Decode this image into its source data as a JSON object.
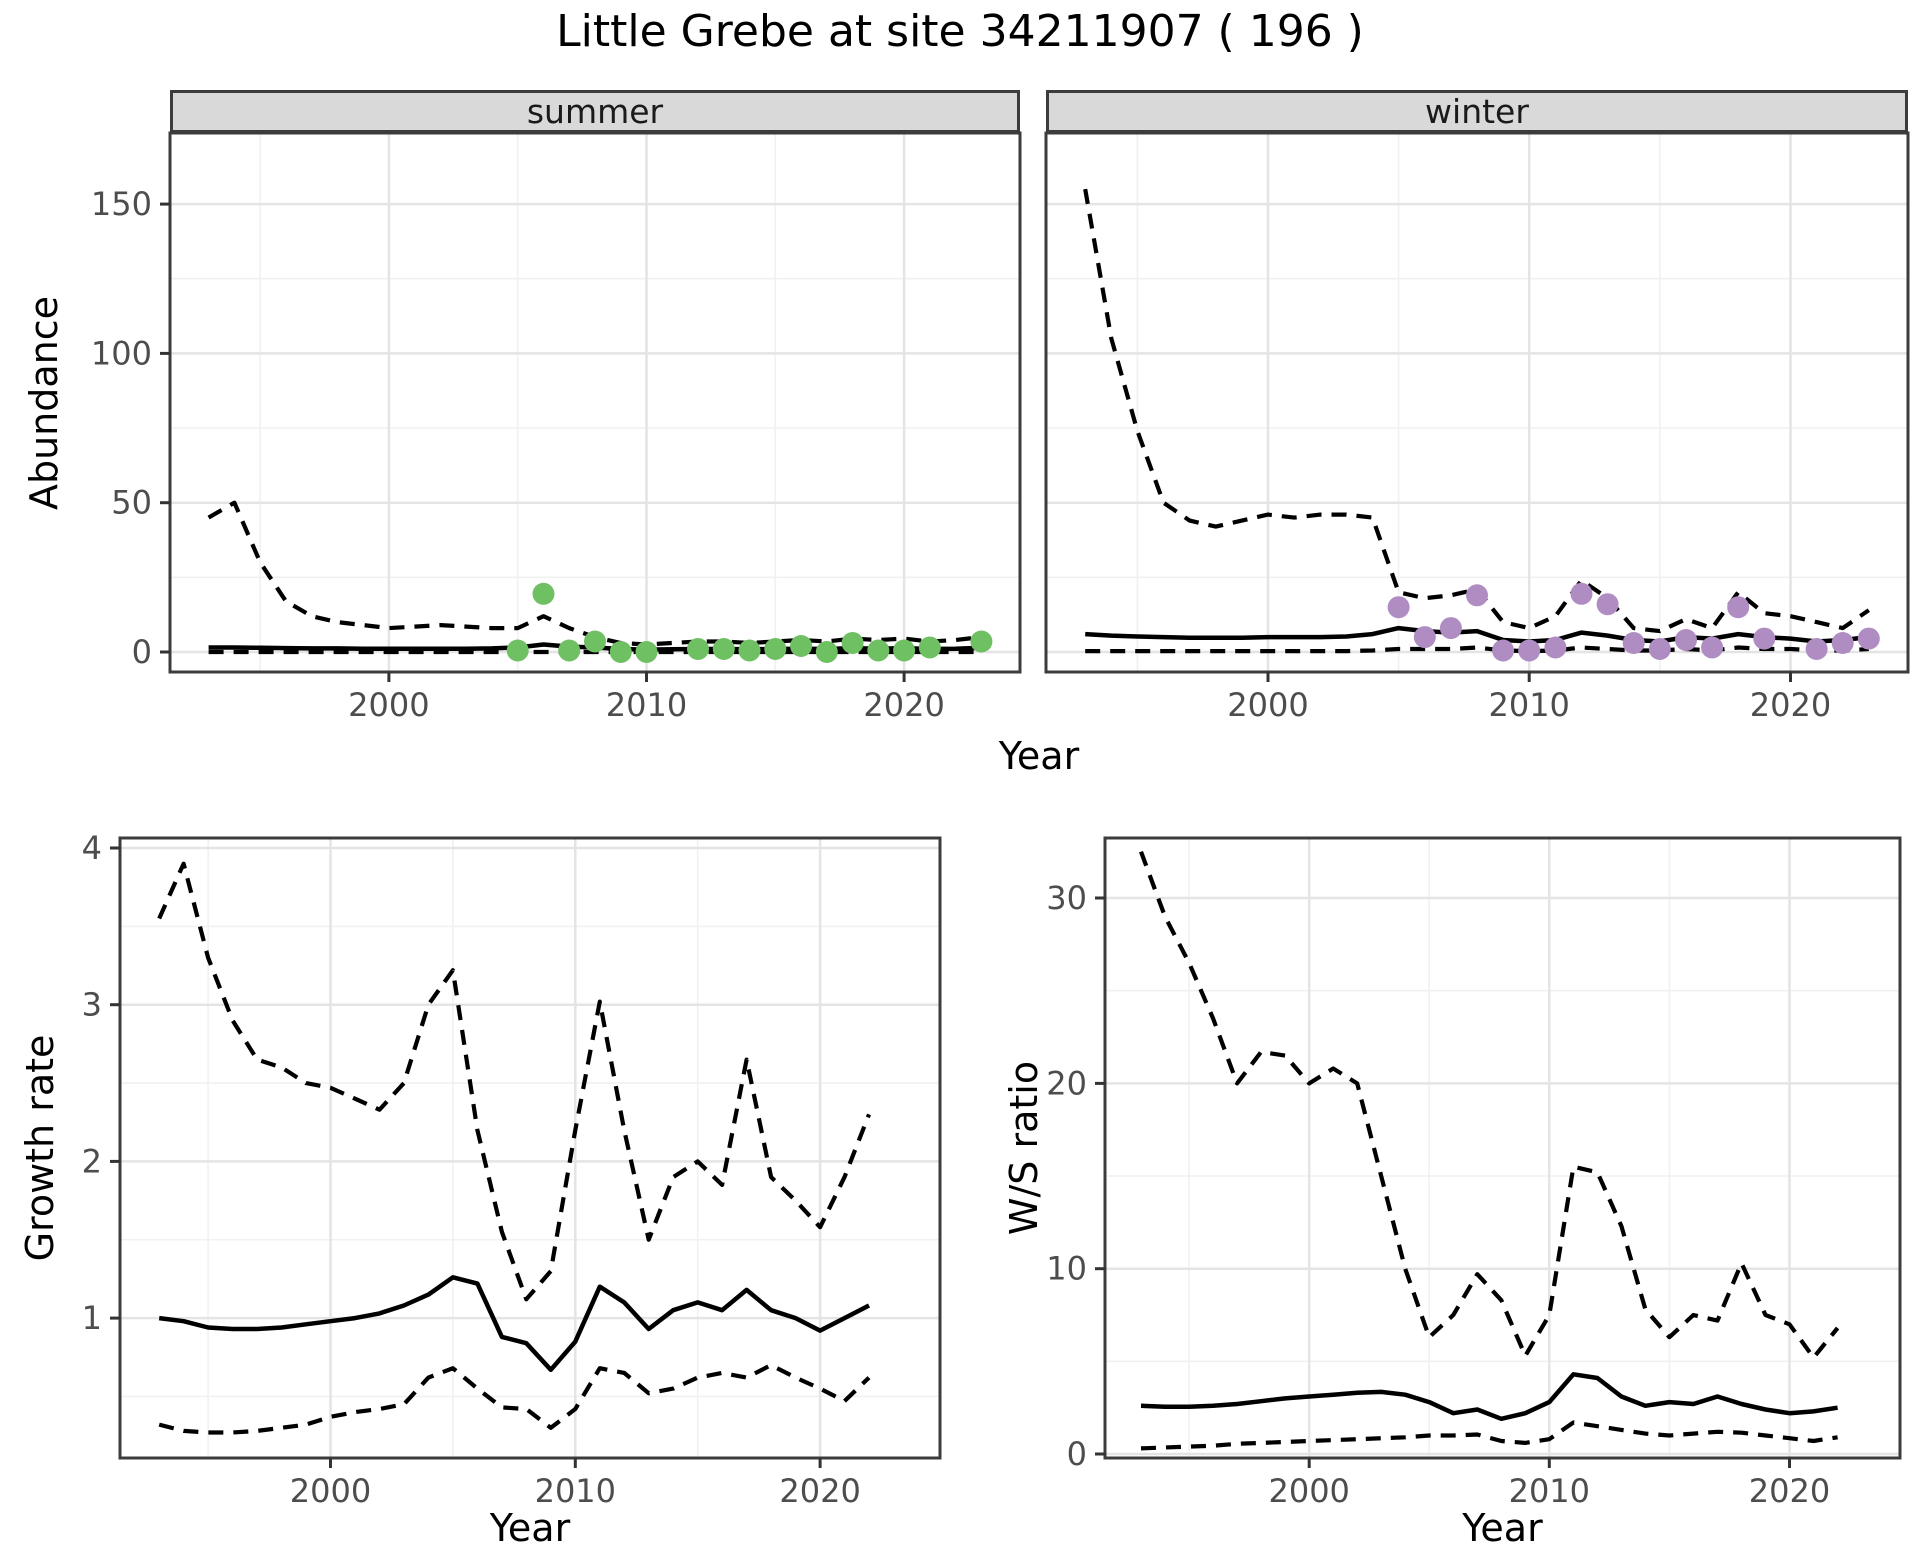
{
  "title": "Little Grebe at site 34211907 ( 196 )",
  "facets": {
    "summer": "summer",
    "winter": "winter"
  },
  "axis_titles": {
    "abundance": "Abundance",
    "growth": "Growth rate",
    "ws_ratio": "W/S ratio",
    "year": "Year"
  },
  "colors": {
    "summer_point": "#6FBF63",
    "winter_point": "#AF8DC3",
    "line": "#000000",
    "panel_border": "#3C3C3C",
    "strip_fill": "#D9D9D9",
    "grid_major": "#E4E4E4",
    "grid_minor": "#F1F1F1",
    "tick_mark": "#333333",
    "tick_label": "#4D4D4D"
  },
  "chart_data": [
    {
      "id": "abundance_summer",
      "type": "line",
      "facet_label": "summer",
      "ylabel": "Abundance",
      "xlabel": "Year",
      "xlim": [
        1991.5,
        2024.5
      ],
      "ylim": [
        -6.7,
        173.8
      ],
      "x_ticks": [
        2000,
        2010,
        2020
      ],
      "y_ticks": [
        0,
        50,
        100,
        150
      ],
      "x_minor": [
        1995,
        2005,
        2015
      ],
      "y_minor": [
        25,
        75,
        125
      ],
      "x": [
        1993,
        1994,
        1995,
        1996,
        1997,
        1998,
        1999,
        2000,
        2001,
        2002,
        2003,
        2004,
        2005,
        2006,
        2007,
        2008,
        2009,
        2010,
        2011,
        2012,
        2013,
        2014,
        2015,
        2016,
        2017,
        2018,
        2019,
        2020,
        2021,
        2022,
        2023
      ],
      "series": [
        {
          "name": "upper-ci",
          "style": "dashed",
          "values": [
            45,
            50,
            30,
            17,
            12,
            10,
            9,
            8,
            8.5,
            9,
            8.5,
            8,
            8,
            12,
            8,
            5,
            3,
            2.5,
            3,
            3.5,
            3.5,
            3,
            3.5,
            4,
            3.5,
            4.5,
            4,
            4.5,
            3.5,
            4,
            5
          ]
        },
        {
          "name": "median",
          "style": "solid",
          "values": [
            1.5,
            1.5,
            1.4,
            1.3,
            1.2,
            1.2,
            1.1,
            1.1,
            1.1,
            1.1,
            1.1,
            1.2,
            1.5,
            2.5,
            1.8,
            1.5,
            1,
            0.8,
            0.9,
            1,
            1,
            0.9,
            1,
            1.1,
            1,
            1.3,
            1.1,
            1.3,
            1,
            1.1,
            1.4
          ]
        },
        {
          "name": "lower-ci",
          "style": "dashed",
          "values": [
            0,
            0,
            0,
            0,
            0,
            0,
            0,
            0,
            0,
            0,
            0,
            0,
            0,
            0,
            0,
            0,
            0,
            0,
            0,
            0,
            0,
            0,
            0,
            0,
            0,
            0,
            0,
            0,
            0,
            0,
            0
          ]
        }
      ],
      "points": {
        "name": "summer-observations",
        "color_key": "summer_point",
        "data": [
          [
            2005,
            0.5
          ],
          [
            2006,
            19.5
          ],
          [
            2007,
            0.5
          ],
          [
            2008,
            3.5
          ],
          [
            2009,
            0
          ],
          [
            2010,
            0
          ],
          [
            2012,
            1
          ],
          [
            2013,
            1
          ],
          [
            2014,
            0.5
          ],
          [
            2015,
            1
          ],
          [
            2016,
            2
          ],
          [
            2017,
            0
          ],
          [
            2018,
            3
          ],
          [
            2019,
            0.5
          ],
          [
            2020,
            0.5
          ],
          [
            2021,
            1.5
          ],
          [
            2023,
            3.5
          ]
        ]
      }
    },
    {
      "id": "abundance_winter",
      "type": "line",
      "facet_label": "winter",
      "ylabel": "Abundance",
      "xlabel": "Year",
      "xlim": [
        1991.5,
        2024.5
      ],
      "ylim": [
        -6.7,
        173.8
      ],
      "x_ticks": [
        2000,
        2010,
        2020
      ],
      "y_ticks": [
        0,
        50,
        100,
        150
      ],
      "x_minor": [
        1995,
        2005,
        2015
      ],
      "y_minor": [
        25,
        75,
        125
      ],
      "x": [
        1993,
        1994,
        1995,
        1996,
        1997,
        1998,
        1999,
        2000,
        2001,
        2002,
        2003,
        2004,
        2005,
        2006,
        2007,
        2008,
        2009,
        2010,
        2011,
        2012,
        2013,
        2014,
        2015,
        2016,
        2017,
        2018,
        2019,
        2020,
        2021,
        2022,
        2023
      ],
      "series": [
        {
          "name": "upper-ci",
          "style": "dashed",
          "values": [
            155,
            105,
            74,
            50,
            44,
            42,
            44,
            46,
            45,
            46,
            46,
            45,
            20,
            18,
            19,
            21,
            10,
            8,
            12,
            24,
            18,
            8,
            7,
            11,
            8,
            20,
            13,
            12,
            10,
            8,
            14
          ]
        },
        {
          "name": "median",
          "style": "solid",
          "values": [
            6,
            5.5,
            5.2,
            5,
            4.8,
            4.8,
            4.8,
            5,
            5,
            5,
            5.2,
            6,
            8,
            7,
            6.5,
            7,
            4,
            3.5,
            4,
            6.5,
            5.5,
            4,
            3.5,
            5,
            4.5,
            6,
            5,
            4.5,
            3.5,
            4,
            5
          ]
        },
        {
          "name": "lower-ci",
          "style": "dashed",
          "values": [
            0.3,
            0.3,
            0.3,
            0.3,
            0.3,
            0.3,
            0.3,
            0.3,
            0.3,
            0.3,
            0.3,
            0.5,
            1,
            1,
            1,
            1.5,
            0.5,
            0.3,
            0.5,
            1.5,
            1,
            0.5,
            0.5,
            1,
            0.5,
            1.5,
            1,
            1,
            0.5,
            0.5,
            1
          ]
        }
      ],
      "points": {
        "name": "winter-observations",
        "color_key": "winter_point",
        "data": [
          [
            2005,
            15
          ],
          [
            2006,
            5
          ],
          [
            2007,
            8
          ],
          [
            2008,
            19
          ],
          [
            2009,
            0.5
          ],
          [
            2010,
            0.5
          ],
          [
            2011,
            1.5
          ],
          [
            2012,
            19.5
          ],
          [
            2013,
            16
          ],
          [
            2014,
            3
          ],
          [
            2015,
            1
          ],
          [
            2016,
            4
          ],
          [
            2017,
            1.5
          ],
          [
            2018,
            15
          ],
          [
            2019,
            4.5
          ],
          [
            2021,
            1
          ],
          [
            2022,
            3
          ],
          [
            2023,
            4.5
          ]
        ]
      }
    },
    {
      "id": "growth_rate",
      "type": "line",
      "ylabel": "Growth rate",
      "xlabel": "Year",
      "xlim": [
        1991.4,
        2024.9
      ],
      "ylim": [
        0.107,
        4.064
      ],
      "x_ticks": [
        2000,
        2010,
        2020
      ],
      "y_ticks": [
        1,
        2,
        3,
        4
      ],
      "x_minor": [
        1995,
        2005,
        2015
      ],
      "y_minor": [
        0.5,
        1.5,
        2.5,
        3.5
      ],
      "x": [
        1993,
        1994,
        1995,
        1996,
        1997,
        1998,
        1999,
        2000,
        2001,
        2002,
        2003,
        2004,
        2005,
        2006,
        2007,
        2008,
        2009,
        2010,
        2011,
        2012,
        2013,
        2014,
        2015,
        2016,
        2017,
        2018,
        2019,
        2020,
        2021,
        2022
      ],
      "series": [
        {
          "name": "upper-ci",
          "style": "dashed",
          "values": [
            3.55,
            3.9,
            3.3,
            2.9,
            2.65,
            2.6,
            2.5,
            2.47,
            2.4,
            2.33,
            2.5,
            3.0,
            3.22,
            2.2,
            1.55,
            1.12,
            1.3,
            2.2,
            3.02,
            2.2,
            1.5,
            1.9,
            2.0,
            1.85,
            2.65,
            1.9,
            1.75,
            1.58,
            1.9,
            2.3
          ]
        },
        {
          "name": "median",
          "style": "solid",
          "values": [
            1.0,
            0.98,
            0.94,
            0.93,
            0.93,
            0.94,
            0.96,
            0.98,
            1.0,
            1.03,
            1.08,
            1.15,
            1.26,
            1.22,
            0.88,
            0.84,
            0.67,
            0.85,
            1.2,
            1.1,
            0.93,
            1.05,
            1.1,
            1.05,
            1.18,
            1.05,
            1.0,
            0.92,
            1.0,
            1.08
          ]
        },
        {
          "name": "lower-ci",
          "style": "dashed",
          "values": [
            0.32,
            0.28,
            0.27,
            0.27,
            0.28,
            0.3,
            0.32,
            0.37,
            0.4,
            0.42,
            0.45,
            0.62,
            0.68,
            0.55,
            0.43,
            0.42,
            0.3,
            0.42,
            0.68,
            0.65,
            0.52,
            0.55,
            0.62,
            0.65,
            0.62,
            0.7,
            0.62,
            0.55,
            0.47,
            0.62
          ]
        }
      ]
    },
    {
      "id": "ws_ratio",
      "type": "line",
      "ylabel": "W/S ratio",
      "xlabel": "Year",
      "xlim": [
        1991.5,
        2024.6
      ],
      "ylim": [
        -0.216,
        33.24
      ],
      "x_ticks": [
        2000,
        2010,
        2020
      ],
      "y_ticks": [
        0,
        10,
        20,
        30
      ],
      "x_minor": [
        1995,
        2005,
        2015
      ],
      "y_minor": [
        5,
        15,
        25
      ],
      "x": [
        1993,
        1994,
        1995,
        1996,
        1997,
        1998,
        1999,
        2000,
        2001,
        2002,
        2003,
        2004,
        2005,
        2006,
        2007,
        2008,
        2009,
        2010,
        2011,
        2012,
        2013,
        2014,
        2015,
        2016,
        2017,
        2018,
        2019,
        2020,
        2021,
        2022
      ],
      "series": [
        {
          "name": "upper-ci",
          "style": "dashed",
          "values": [
            32.5,
            29,
            26.5,
            23.5,
            20,
            21.7,
            21.5,
            20,
            20.8,
            20,
            15,
            10,
            6.3,
            7.5,
            9.7,
            8.3,
            5.3,
            7.5,
            15.5,
            15.2,
            12.3,
            7.8,
            6.3,
            7.5,
            7.2,
            10.3,
            7.5,
            7.0,
            5.2,
            6.8
          ]
        },
        {
          "name": "median",
          "style": "solid",
          "values": [
            2.6,
            2.55,
            2.55,
            2.6,
            2.7,
            2.85,
            3.0,
            3.1,
            3.2,
            3.3,
            3.35,
            3.2,
            2.8,
            2.2,
            2.4,
            1.9,
            2.2,
            2.8,
            4.3,
            4.1,
            3.1,
            2.6,
            2.8,
            2.7,
            3.1,
            2.7,
            2.4,
            2.2,
            2.3,
            2.5
          ]
        },
        {
          "name": "lower-ci",
          "style": "dashed",
          "values": [
            0.3,
            0.35,
            0.4,
            0.45,
            0.55,
            0.6,
            0.65,
            0.7,
            0.75,
            0.8,
            0.85,
            0.9,
            1.0,
            1.0,
            1.05,
            0.7,
            0.6,
            0.8,
            1.7,
            1.5,
            1.3,
            1.1,
            1.0,
            1.1,
            1.2,
            1.15,
            1.0,
            0.85,
            0.7,
            0.9
          ]
        }
      ]
    }
  ]
}
